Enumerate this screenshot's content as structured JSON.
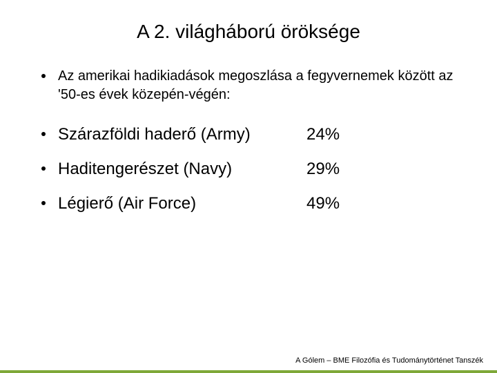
{
  "slide": {
    "title": "A 2. világháború öröksége",
    "intro": "Az amerikai hadikiadások megoszlása a fegyvernemek között az '50-es évek közepén-végén:",
    "items": [
      {
        "label": "Szárazföldi haderő (Army)",
        "value": "24%"
      },
      {
        "label": "Haditengerészet (Navy)",
        "value": "29%"
      },
      {
        "label": "Légierő (Air Force)",
        "value": "49%"
      }
    ],
    "footer": "A Gólem – BME Filozófia és Tudománytörténet Tanszék"
  },
  "style": {
    "type": "document-slide",
    "background_color": "#ffffff",
    "text_color": "#000000",
    "accent_bar_color": "#7ea838",
    "title_fontsize": 28,
    "intro_fontsize": 20,
    "item_fontsize": 24,
    "footer_fontsize": 11,
    "bullet_color": "#000000",
    "bullet_size": 6,
    "label_column_width": 360
  }
}
